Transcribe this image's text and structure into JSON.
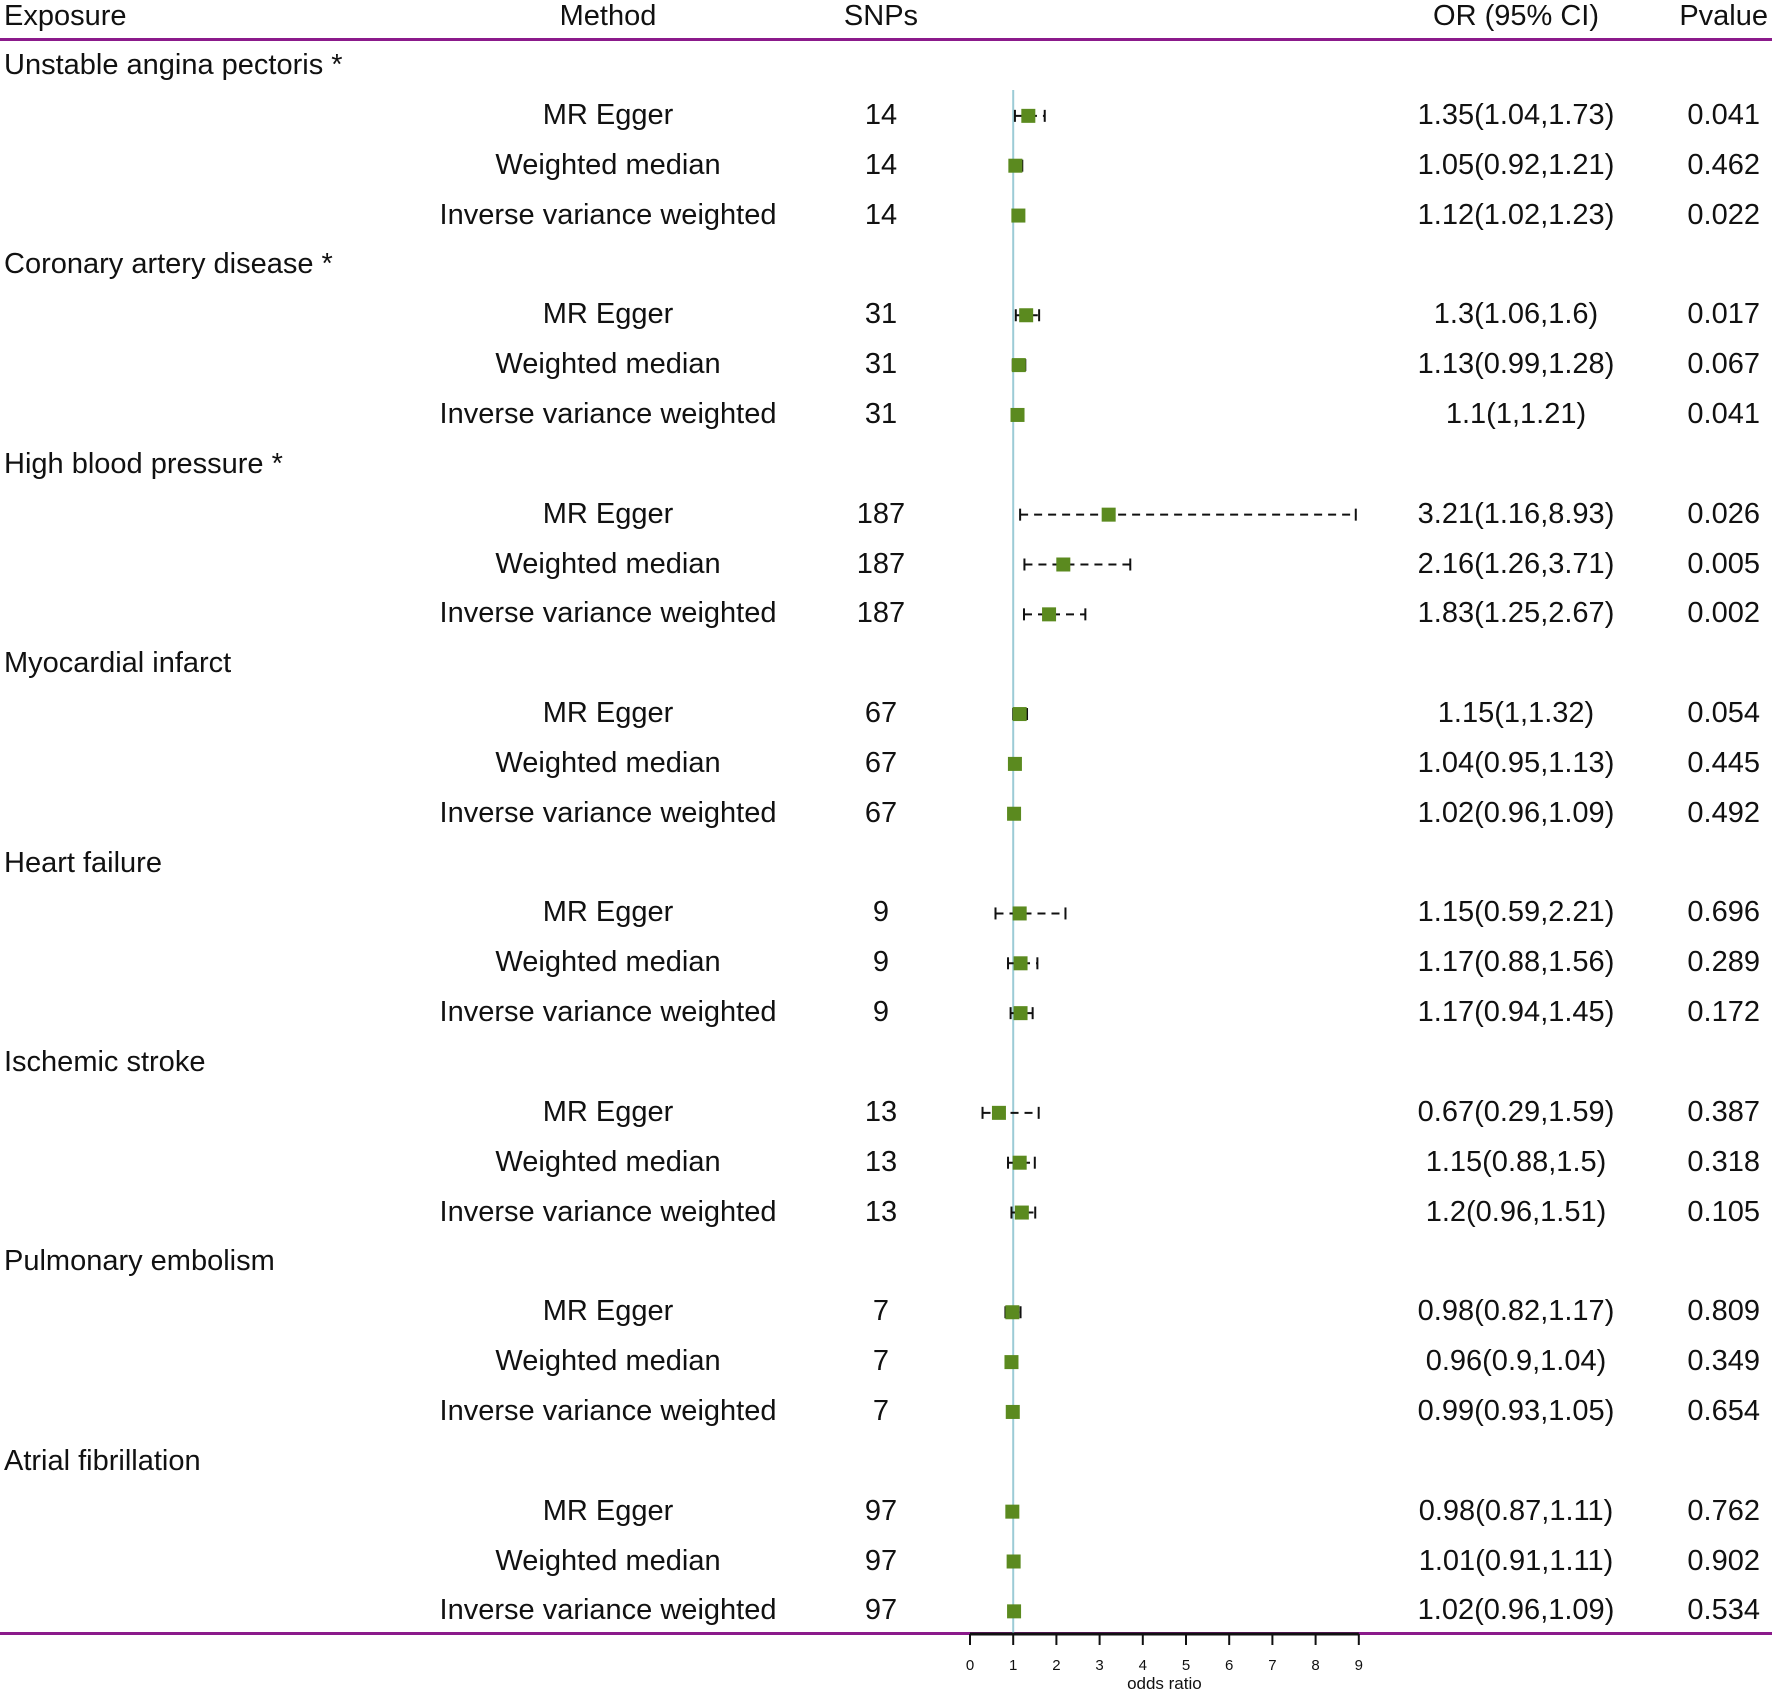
{
  "headers": {
    "exposure": "Exposure",
    "method": "Method",
    "snps": "SNPs",
    "or": "OR (95% CI)",
    "pvalue": "Pvalue"
  },
  "colors": {
    "rule": "#8b1a8b",
    "refline": "#9ccbd6",
    "marker": "#5b8a1f",
    "ci": "#111111"
  },
  "chart_data": {
    "type": "forest",
    "xlabel": "odds ratio",
    "xlim": [
      0,
      9
    ],
    "xticks": [
      "0",
      "1",
      "2",
      "3",
      "4",
      "5",
      "6",
      "7",
      "8",
      "9"
    ],
    "reference_line": 1,
    "groups": [
      {
        "exposure": "Unstable angina pectoris *",
        "rows": [
          {
            "method": "MR Egger",
            "snps": "14",
            "or": 1.35,
            "lo": 1.04,
            "hi": 1.73,
            "label": "1.35(1.04,1.73)",
            "p": "0.041"
          },
          {
            "method": "Weighted median",
            "snps": "14",
            "or": 1.05,
            "lo": 0.92,
            "hi": 1.21,
            "label": "1.05(0.92,1.21)",
            "p": "0.462"
          },
          {
            "method": "Inverse variance weighted",
            "snps": "14",
            "or": 1.12,
            "lo": 1.02,
            "hi": 1.23,
            "label": "1.12(1.02,1.23)",
            "p": "0.022"
          }
        ]
      },
      {
        "exposure": "Coronary artery disease *",
        "rows": [
          {
            "method": "MR Egger",
            "snps": "31",
            "or": 1.3,
            "lo": 1.06,
            "hi": 1.6,
            "label": "1.3(1.06,1.6)",
            "p": "0.017"
          },
          {
            "method": "Weighted median",
            "snps": "31",
            "or": 1.13,
            "lo": 0.99,
            "hi": 1.28,
            "label": "1.13(0.99,1.28)",
            "p": "0.067"
          },
          {
            "method": "Inverse variance weighted",
            "snps": "31",
            "or": 1.1,
            "lo": 1,
            "hi": 1.21,
            "label": "1.1(1,1.21)",
            "p": "0.041"
          }
        ]
      },
      {
        "exposure": "High blood pressure *",
        "rows": [
          {
            "method": "MR Egger",
            "snps": "187",
            "or": 3.21,
            "lo": 1.16,
            "hi": 8.93,
            "label": "3.21(1.16,8.93)",
            "p": "0.026"
          },
          {
            "method": "Weighted median",
            "snps": "187",
            "or": 2.16,
            "lo": 1.26,
            "hi": 3.71,
            "label": "2.16(1.26,3.71)",
            "p": "0.005"
          },
          {
            "method": "Inverse variance weighted",
            "snps": "187",
            "or": 1.83,
            "lo": 1.25,
            "hi": 2.67,
            "label": "1.83(1.25,2.67)",
            "p": "0.002"
          }
        ]
      },
      {
        "exposure": "Myocardial infarct",
        "rows": [
          {
            "method": "MR Egger",
            "snps": "67",
            "or": 1.15,
            "lo": 1,
            "hi": 1.32,
            "label": "1.15(1,1.32)",
            "p": "0.054"
          },
          {
            "method": "Weighted median",
            "snps": "67",
            "or": 1.04,
            "lo": 0.95,
            "hi": 1.13,
            "label": "1.04(0.95,1.13)",
            "p": "0.445"
          },
          {
            "method": "Inverse variance weighted",
            "snps": "67",
            "or": 1.02,
            "lo": 0.96,
            "hi": 1.09,
            "label": "1.02(0.96,1.09)",
            "p": "0.492"
          }
        ]
      },
      {
        "exposure": "Heart failure",
        "rows": [
          {
            "method": "MR Egger",
            "snps": "9",
            "or": 1.15,
            "lo": 0.59,
            "hi": 2.21,
            "label": "1.15(0.59,2.21)",
            "p": "0.696"
          },
          {
            "method": "Weighted median",
            "snps": "9",
            "or": 1.17,
            "lo": 0.88,
            "hi": 1.56,
            "label": "1.17(0.88,1.56)",
            "p": "0.289"
          },
          {
            "method": "Inverse variance weighted",
            "snps": "9",
            "or": 1.17,
            "lo": 0.94,
            "hi": 1.45,
            "label": "1.17(0.94,1.45)",
            "p": "0.172"
          }
        ]
      },
      {
        "exposure": "Ischemic stroke",
        "rows": [
          {
            "method": "MR Egger",
            "snps": "13",
            "or": 0.67,
            "lo": 0.29,
            "hi": 1.59,
            "label": "0.67(0.29,1.59)",
            "p": "0.387"
          },
          {
            "method": "Weighted median",
            "snps": "13",
            "or": 1.15,
            "lo": 0.88,
            "hi": 1.5,
            "label": "1.15(0.88,1.5)",
            "p": "0.318"
          },
          {
            "method": "Inverse variance weighted",
            "snps": "13",
            "or": 1.2,
            "lo": 0.96,
            "hi": 1.51,
            "label": "1.2(0.96,1.51)",
            "p": "0.105"
          }
        ]
      },
      {
        "exposure": "Pulmonary embolism",
        "rows": [
          {
            "method": "MR Egger",
            "snps": "7",
            "or": 0.98,
            "lo": 0.82,
            "hi": 1.17,
            "label": "0.98(0.82,1.17)",
            "p": "0.809"
          },
          {
            "method": "Weighted median",
            "snps": "7",
            "or": 0.96,
            "lo": 0.9,
            "hi": 1.04,
            "label": "0.96(0.9,1.04)",
            "p": "0.349"
          },
          {
            "method": "Inverse variance weighted",
            "snps": "7",
            "or": 0.99,
            "lo": 0.93,
            "hi": 1.05,
            "label": "0.99(0.93,1.05)",
            "p": "0.654"
          }
        ]
      },
      {
        "exposure": "Atrial fibrillation",
        "rows": [
          {
            "method": "MR Egger",
            "snps": "97",
            "or": 0.98,
            "lo": 0.87,
            "hi": 1.11,
            "label": "0.98(0.87,1.11)",
            "p": "0.762"
          },
          {
            "method": "Weighted median",
            "snps": "97",
            "or": 1.01,
            "lo": 0.91,
            "hi": 1.11,
            "label": "1.01(0.91,1.11)",
            "p": "0.902"
          },
          {
            "method": "Inverse variance weighted",
            "snps": "97",
            "or": 1.02,
            "lo": 0.96,
            "hi": 1.09,
            "label": "1.02(0.96,1.09)",
            "p": "0.534"
          }
        ]
      }
    ]
  }
}
